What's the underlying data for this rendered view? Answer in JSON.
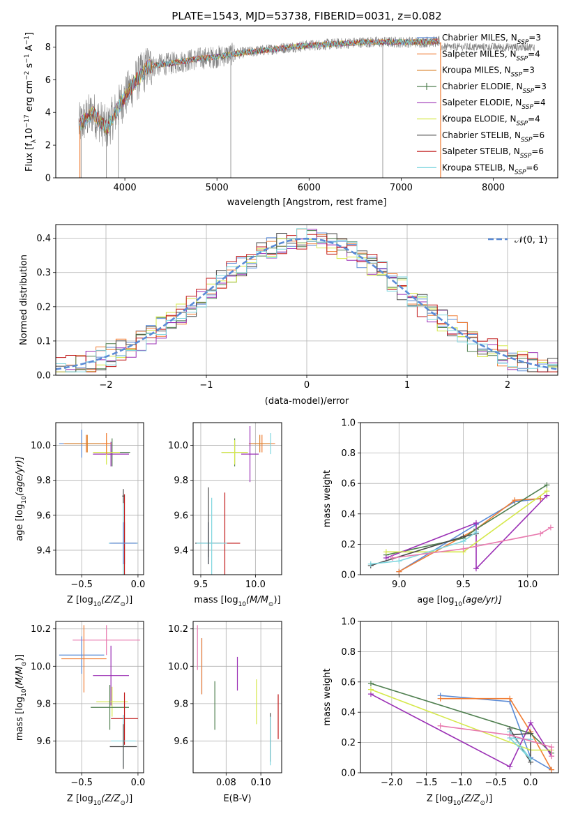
{
  "figure": {
    "title": "PLATE=1543, MJD=53738, FIBERID=0031, z=0.082"
  },
  "models": [
    {
      "name": "Chabrier MILES, N",
      "sub": "SSP",
      "tail": "=3",
      "color": "#5a8bd6"
    },
    {
      "name": "Salpeter MILES, N",
      "sub": "SSP",
      "tail": "=4",
      "color": "#f07d34"
    },
    {
      "name": "Kroupa MILES, N",
      "sub": "SSP",
      "tail": "=3",
      "color": "#d9822b"
    },
    {
      "name": "Chabrier ELODIE, N",
      "sub": "SSP",
      "tail": "=3",
      "color": "#4f7f4f"
    },
    {
      "name": "Salpeter ELODIE, N",
      "sub": "SSP",
      "tail": "=4",
      "color": "#9b30b5"
    },
    {
      "name": "Kroupa ELODIE, N",
      "sub": "SSP",
      "tail": "=4",
      "color": "#d5e84a"
    },
    {
      "name": "Chabrier STELIB, N",
      "sub": "SSP",
      "tail": "=6",
      "color": "#4a4a4a"
    },
    {
      "name": "Salpeter STELIB, N",
      "sub": "SSP",
      "tail": "=6",
      "color": "#c11a1a"
    },
    {
      "name": "Kroupa STELIB, N",
      "sub": "SSP",
      "tail": "=6",
      "color": "#7ed6df"
    }
  ],
  "chart_data": [
    {
      "id": "spectrum",
      "type": "line",
      "xlabel": "wavelength [Angstrom, rest frame]",
      "ylabel_main": "Flux [f",
      "ylabel_sub": "λ",
      "ylabel_rest": "10",
      "ylabel_exp1": "−17",
      "ylabel_mid": " erg cm",
      "ylabel_exp2": "−2",
      "ylabel_s": " s",
      "ylabel_exp3": "−1",
      "ylabel_end": " A",
      "ylabel_exp4": "−1",
      "ylabel_close": "]",
      "xlim": [
        3250,
        8700
      ],
      "ylim": [
        0,
        9.3
      ],
      "xticks": [
        "4000",
        "5000",
        "6000",
        "7000",
        "8000"
      ],
      "xtick_values": [
        4000,
        5000,
        6000,
        7000,
        8000
      ],
      "yticks": [
        "0",
        "2",
        "4",
        "6",
        "8"
      ],
      "ytick_values": [
        0,
        2,
        4,
        6,
        8
      ],
      "continuum": [
        [
          3500,
          3.2
        ],
        [
          3650,
          4.0
        ],
        [
          3800,
          3.0
        ],
        [
          3950,
          4.5
        ],
        [
          4100,
          5.8
        ],
        [
          4250,
          6.8
        ],
        [
          4500,
          7.0
        ],
        [
          4800,
          7.3
        ],
        [
          5000,
          7.4
        ],
        [
          5200,
          7.6
        ],
        [
          5500,
          7.8
        ],
        [
          5800,
          8.0
        ],
        [
          6000,
          8.1
        ],
        [
          6300,
          8.2
        ],
        [
          6600,
          8.3
        ],
        [
          6900,
          8.3
        ],
        [
          7200,
          8.3
        ],
        [
          7420,
          8.35
        ]
      ],
      "observed_end": 8450,
      "observed_level_end": 8.0
    },
    {
      "id": "residuals",
      "type": "bar",
      "xlabel": "(data-model)/error",
      "ylabel": "Normed distribution",
      "xlim": [
        -2.5,
        2.5
      ],
      "ylim": [
        0,
        0.44
      ],
      "xticks": [
        "−2",
        "−1",
        "0",
        "1",
        "2"
      ],
      "xtick_values": [
        -2,
        -1,
        0,
        1,
        2
      ],
      "yticks": [
        "0.0",
        "0.1",
        "0.2",
        "0.3",
        "0.4"
      ],
      "ytick_values": [
        0.0,
        0.1,
        0.2,
        0.3,
        0.4
      ],
      "bin_width": 0.1,
      "legend_label": "𝒩(0, 1)",
      "gaussian": {
        "mean": 0,
        "sigma": 1,
        "color": "#5a8bd6"
      }
    },
    {
      "id": "age-vs-Z",
      "type": "scatter",
      "xlabel_main": "Z [log",
      "xlabel_sub": "10",
      "xlabel_rest": "(Z/Z",
      "xlabel_sun": "⊙",
      "xlabel_close": ")]",
      "ylabel_main": "age  [log",
      "ylabel_sub": "10",
      "ylabel_rest": "(age/yr)]",
      "xlim": [
        -0.73,
        0.05
      ],
      "ylim": [
        9.26,
        10.13
      ],
      "xticks": [
        "−0.5",
        "0.0"
      ],
      "xtick_values": [
        -0.5,
        0.0
      ],
      "yticks": [
        "9.4",
        "9.6",
        "9.8",
        "10.0"
      ],
      "ytick_values": [
        9.4,
        9.6,
        9.8,
        10.0
      ],
      "points": [
        {
          "model": 0,
          "x": -0.5,
          "y": 10.01,
          "xerr": 0.2,
          "yerr": 0.08
        },
        {
          "model": 1,
          "x": -0.46,
          "y": 10.01,
          "xerr": 0.2,
          "yerr": 0.05
        },
        {
          "model": 2,
          "x": -0.45,
          "y": 10.01,
          "xerr": 0.2,
          "yerr": 0.05
        },
        {
          "model": 3,
          "x": -0.23,
          "y": 9.96,
          "xerr": 0.16,
          "yerr": 0.08
        },
        {
          "model": 4,
          "x": -0.24,
          "y": 9.95,
          "xerr": 0.16,
          "yerr": 0.07
        },
        {
          "model": 5,
          "x": -0.28,
          "y": 9.96,
          "xerr": 0.12,
          "yerr": 0.07
        },
        {
          "model": 6,
          "x": -0.12,
          "y": 9.44,
          "xerr": 0.1,
          "yerr": 0.12
        },
        {
          "model": 7,
          "x": -0.12,
          "y": 9.44,
          "xerr": 0.12,
          "yerr": 0.28
        },
        {
          "model": 8,
          "x": -0.13,
          "y": 9.44,
          "xerr": 0.13,
          "yerr": 0.26
        },
        {
          "model": 0,
          "x": -0.13,
          "y": 9.44,
          "xerr": 0.12,
          "yerr": 0.12
        },
        {
          "model": 1,
          "x": -0.28,
          "y": 10.01,
          "xerr": 0.04,
          "yerr": 0.06
        },
        {
          "model": 6,
          "x": -0.13,
          "y": 9.71,
          "xerr": 0.01,
          "yerr": 0.04
        }
      ]
    },
    {
      "id": "age-vs-mass",
      "type": "scatter",
      "xlabel_main": "mass [log",
      "xlabel_sub": "10",
      "xlabel_rest": "(M/M",
      "xlabel_sun": "⊙",
      "xlabel_close": ")]",
      "xlim": [
        9.43,
        10.24
      ],
      "ylim": [
        9.26,
        10.13
      ],
      "xticks": [
        "9.5",
        "10.0"
      ],
      "xtick_values": [
        9.5,
        10.0
      ],
      "yticks": [
        "9.4",
        "9.6",
        "9.8",
        "10.0"
      ],
      "ytick_values": [
        9.4,
        9.6,
        9.8,
        10.0
      ],
      "points": [
        {
          "model": 0,
          "x": 9.57,
          "y": 9.44,
          "xerr": 0.12,
          "yerr": 0.12
        },
        {
          "model": 1,
          "x": 10.06,
          "y": 10.01,
          "xerr": 0.12,
          "yerr": 0.05
        },
        {
          "model": 2,
          "x": 10.04,
          "y": 10.01,
          "xerr": 0.1,
          "yerr": 0.05
        },
        {
          "model": 3,
          "x": 9.81,
          "y": 9.96,
          "xerr": 0.12,
          "yerr": 0.08
        },
        {
          "model": 4,
          "x": 9.95,
          "y": 9.95,
          "xerr": 0.08,
          "yerr": 0.16
        },
        {
          "model": 5,
          "x": 9.81,
          "y": 9.96,
          "xerr": 0.12,
          "yerr": 0.07
        },
        {
          "model": 6,
          "x": 9.57,
          "y": 9.44,
          "xerr": 0.12,
          "yerr": 0.12
        },
        {
          "model": 7,
          "x": 9.72,
          "y": 9.44,
          "xerr": 0.14,
          "yerr": 0.29
        },
        {
          "model": 8,
          "x": 9.6,
          "y": 9.44,
          "xerr": 0.14,
          "yerr": 0.26
        },
        {
          "model": 6,
          "x": 9.57,
          "y": 9.56,
          "xerr": 0.0,
          "yerr": 0.2
        },
        {
          "model": 8,
          "x": 10.14,
          "y": 10.01,
          "xerr": 0.0,
          "yerr": 0.06
        }
      ]
    },
    {
      "id": "weight-vs-age",
      "type": "line",
      "xlabel_main": "age  [log",
      "xlabel_sub": "10",
      "xlabel_rest": "(age/yr)]",
      "ylabel": "mass weight",
      "xlim": [
        8.7,
        10.24
      ],
      "ylim": [
        0,
        1.0
      ],
      "xticks": [
        "9.0",
        "9.5",
        "10.0"
      ],
      "xtick_values": [
        9.0,
        9.5,
        10.0
      ],
      "yticks": [
        "0.0",
        "0.2",
        "0.4",
        "0.6",
        "0.8",
        "1.0"
      ],
      "ytick_values": [
        0.0,
        0.2,
        0.4,
        0.6,
        0.8,
        1.0
      ],
      "series": [
        {
          "model": 0,
          "points": [
            [
              9.0,
              0.02
            ],
            [
              9.6,
              0.33
            ],
            [
              9.9,
              0.48
            ],
            [
              10.1,
              0.5
            ]
          ]
        },
        {
          "model": 1,
          "points": [
            [
              9.0,
              0.02
            ],
            [
              9.6,
              0.3
            ],
            [
              9.9,
              0.49
            ],
            [
              10.1,
              0.5
            ]
          ]
        },
        {
          "model": 3,
          "points": [
            [
              8.9,
              0.13
            ],
            [
              9.5,
              0.24
            ],
            [
              9.6,
              0.3
            ],
            [
              10.15,
              0.59
            ]
          ]
        },
        {
          "model": 4,
          "points": [
            [
              8.9,
              0.11
            ],
            [
              9.6,
              0.34
            ],
            [
              9.6,
              0.04
            ],
            [
              10.15,
              0.52
            ]
          ]
        },
        {
          "model": 5,
          "points": [
            [
              8.9,
              0.15
            ],
            [
              9.5,
              0.15
            ],
            [
              10.15,
              0.55
            ]
          ]
        },
        {
          "model": 6,
          "points": [
            [
              8.78,
              0.06
            ],
            [
              9.5,
              0.25
            ],
            [
              9.6,
              0.27
            ]
          ]
        },
        {
          "model": 8,
          "points": [
            [
              8.78,
              0.07
            ],
            [
              9.0,
              0.09
            ],
            [
              9.5,
              0.22
            ],
            [
              9.6,
              0.28
            ]
          ]
        },
        {
          "model": "pink",
          "points": [
            [
              8.95,
              0.11
            ],
            [
              9.5,
              0.17
            ],
            [
              10.1,
              0.27
            ],
            [
              10.18,
              0.31
            ]
          ]
        }
      ]
    },
    {
      "id": "mass-vs-Z",
      "type": "scatter",
      "xlabel_main": "Z [log",
      "xlabel_sub": "10",
      "xlabel_rest": "(Z/Z",
      "xlabel_sun": "⊙",
      "xlabel_close": ")]",
      "ylabel_main": "mass [log",
      "ylabel_sub": "10",
      "ylabel_rest": "(M/M",
      "ylabel_sun": "⊙",
      "ylabel_close": ")]",
      "xlim": [
        -0.73,
        0.05
      ],
      "ylim": [
        9.43,
        10.24
      ],
      "xticks": [
        "−0.5",
        "0.0"
      ],
      "xtick_values": [
        -0.5,
        0.0
      ],
      "yticks": [
        "9.6",
        "9.8",
        "10.0",
        "10.2"
      ],
      "ytick_values": [
        9.6,
        9.8,
        10.0,
        10.2
      ],
      "points": [
        {
          "model": "pink",
          "x": -0.28,
          "y": 10.14,
          "xerr": 0.3,
          "yerr": 0.08
        },
        {
          "model": 0,
          "x": -0.5,
          "y": 10.06,
          "xerr": 0.2,
          "yerr": 0.1
        },
        {
          "model": 1,
          "x": -0.48,
          "y": 10.04,
          "xerr": 0.2,
          "yerr": 0.18
        },
        {
          "model": 4,
          "x": -0.24,
          "y": 9.95,
          "xerr": 0.16,
          "yerr": 0.16
        },
        {
          "model": 5,
          "x": -0.23,
          "y": 9.81,
          "xerr": 0.14,
          "yerr": 0.08
        },
        {
          "model": 3,
          "x": -0.25,
          "y": 9.78,
          "xerr": 0.17,
          "yerr": 0.12
        },
        {
          "model": 7,
          "x": -0.12,
          "y": 9.72,
          "xerr": 0.12,
          "yerr": 0.14
        },
        {
          "model": 8,
          "x": -0.13,
          "y": 9.6,
          "xerr": 0.11,
          "yerr": 0.14
        },
        {
          "model": 6,
          "x": -0.13,
          "y": 9.57,
          "xerr": 0.12,
          "yerr": 0.12
        }
      ]
    },
    {
      "id": "mass-vs-ebv",
      "type": "scatter",
      "xlabel": "E(B-V)",
      "xlim": [
        0.061,
        0.112
      ],
      "ylim": [
        9.43,
        10.24
      ],
      "xticks": [
        "0.08",
        "0.10"
      ],
      "xtick_values": [
        0.08,
        0.1
      ],
      "yticks": [
        "9.6",
        "9.8",
        "10.0",
        "10.2"
      ],
      "ytick_values": [
        9.6,
        9.8,
        10.0,
        10.2
      ],
      "points": [
        {
          "model": "pink",
          "x": 0.0635,
          "y": 10.1,
          "yerr": 0.12
        },
        {
          "model": 0,
          "x": 0.066,
          "y": 10.0,
          "yerr": 0.15
        },
        {
          "model": 1,
          "x": 0.066,
          "y": 10.0,
          "yerr": 0.15
        },
        {
          "model": 3,
          "x": 0.0735,
          "y": 9.79,
          "yerr": 0.13
        },
        {
          "model": 4,
          "x": 0.0865,
          "y": 9.96,
          "yerr": 0.09
        },
        {
          "model": 5,
          "x": 0.0975,
          "y": 9.81,
          "yerr": 0.12
        },
        {
          "model": 6,
          "x": 0.1055,
          "y": 9.62,
          "yerr": 0.13
        },
        {
          "model": 8,
          "x": 0.1055,
          "y": 9.6,
          "yerr": 0.13
        },
        {
          "model": 7,
          "x": 0.11,
          "y": 9.73,
          "yerr": 0.12
        }
      ]
    },
    {
      "id": "weight-vs-Z",
      "type": "line",
      "xlabel_main": "Z [log",
      "xlabel_sub": "10",
      "xlabel_rest": "(Z/Z",
      "xlabel_sun": "⊙",
      "xlabel_close": ")]",
      "ylabel": "mass weight",
      "xlim": [
        -2.45,
        0.4
      ],
      "ylim": [
        0,
        1.0
      ],
      "xticks": [
        "−2.0",
        "−1.5",
        "−1.0",
        "−0.5",
        "0.0"
      ],
      "xtick_values": [
        -2.0,
        -1.5,
        -1.0,
        -0.5,
        0.0
      ],
      "yticks": [
        "0.0",
        "0.2",
        "0.4",
        "0.6",
        "0.8",
        "1.0"
      ],
      "ytick_values": [
        0.0,
        0.2,
        0.4,
        0.6,
        0.8,
        1.0
      ],
      "series": [
        {
          "model": 0,
          "points": [
            [
              -1.3,
              0.51
            ],
            [
              -0.3,
              0.47
            ],
            [
              0.0,
              0.1
            ],
            [
              0.3,
              0.02
            ]
          ]
        },
        {
          "model": 1,
          "points": [
            [
              -1.3,
              0.49
            ],
            [
              -0.3,
              0.49
            ],
            [
              0.0,
              0.27
            ],
            [
              0.3,
              0.02
            ]
          ]
        },
        {
          "model": 3,
          "points": [
            [
              -2.3,
              0.59
            ],
            [
              0.0,
              0.26
            ],
            [
              0.3,
              0.13
            ]
          ]
        },
        {
          "model": 4,
          "points": [
            [
              -2.3,
              0.52
            ],
            [
              -0.3,
              0.04
            ],
            [
              0.0,
              0.33
            ],
            [
              0.3,
              0.11
            ]
          ]
        },
        {
          "model": 5,
          "points": [
            [
              -2.3,
              0.55
            ],
            [
              0.0,
              0.15
            ],
            [
              0.3,
              0.15
            ]
          ]
        },
        {
          "model": 6,
          "points": [
            [
              -0.3,
              0.29
            ],
            [
              0.0,
              0.07
            ],
            [
              0.0,
              0.26
            ],
            [
              -0.3,
              0.25
            ]
          ]
        },
        {
          "model": 8,
          "points": [
            [
              -0.3,
              0.27
            ],
            [
              0.0,
              0.09
            ],
            [
              -0.3,
              0.23
            ],
            [
              0.0,
              0.22
            ]
          ]
        },
        {
          "model": "pink",
          "points": [
            [
              -1.3,
              0.31
            ],
            [
              -0.3,
              0.25
            ],
            [
              0.3,
              0.17
            ],
            [
              0.3,
              0.11
            ]
          ]
        }
      ]
    }
  ],
  "colors": {
    "pink": "#e87aaf",
    "observed": "#808080",
    "grid": "#b0b0b0",
    "axis": "#000000"
  }
}
